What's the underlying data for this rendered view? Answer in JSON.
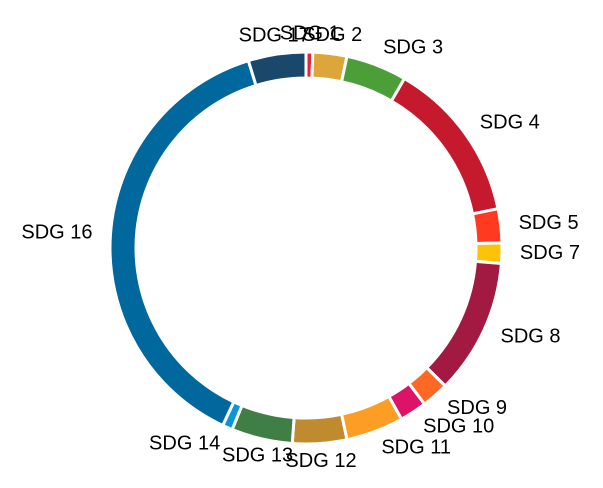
{
  "chart_data": {
    "type": "donut",
    "categories": [
      "SDG 1",
      "SDG 2",
      "SDG 3",
      "SDG 4",
      "SDG 5",
      "SDG 7",
      "SDG 8",
      "SDG 9",
      "SDG 10",
      "SDG 11",
      "SDG 12",
      "SDG 13",
      "SDG 14",
      "SDG 16",
      "SDG 17"
    ],
    "values": [
      2,
      10,
      18,
      48,
      10,
      6,
      40,
      8,
      8,
      17,
      16,
      18,
      3,
      137,
      17
    ],
    "colors": [
      "#e5243b",
      "#dda63a",
      "#4c9f38",
      "#c5192d",
      "#ff3a21",
      "#fcc30b",
      "#a21942",
      "#fd6925",
      "#dd1367",
      "#fd9d24",
      "#bf8b2e",
      "#3f7e44",
      "#0a97d9",
      "#00689d",
      "#19486a"
    ]
  }
}
